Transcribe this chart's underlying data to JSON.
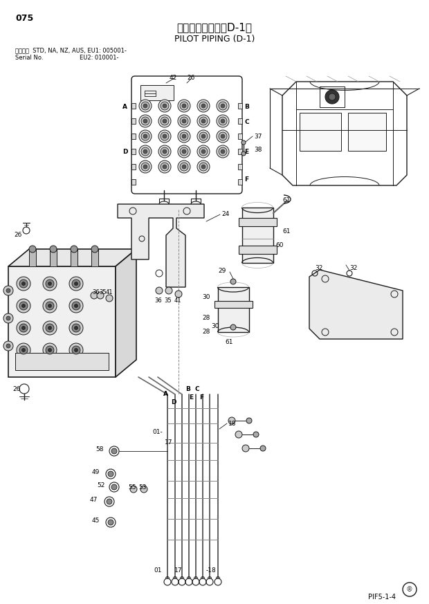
{
  "title_jp": "パイロット配管（D-1）",
  "title_en": "PILOT PIPING (D-1)",
  "page_number": "075",
  "serial_line1": "適用号機  STD, NA, NZ, AUS, EU1: 005001-",
  "serial_line2": "Serial No.                    EU2: 010001-",
  "footer_code": "PIF5-1-4",
  "bg_color": "#ffffff",
  "line_color": "#1a1a1a",
  "fig_width": 6.2,
  "fig_height": 8.73,
  "dpi": 100
}
